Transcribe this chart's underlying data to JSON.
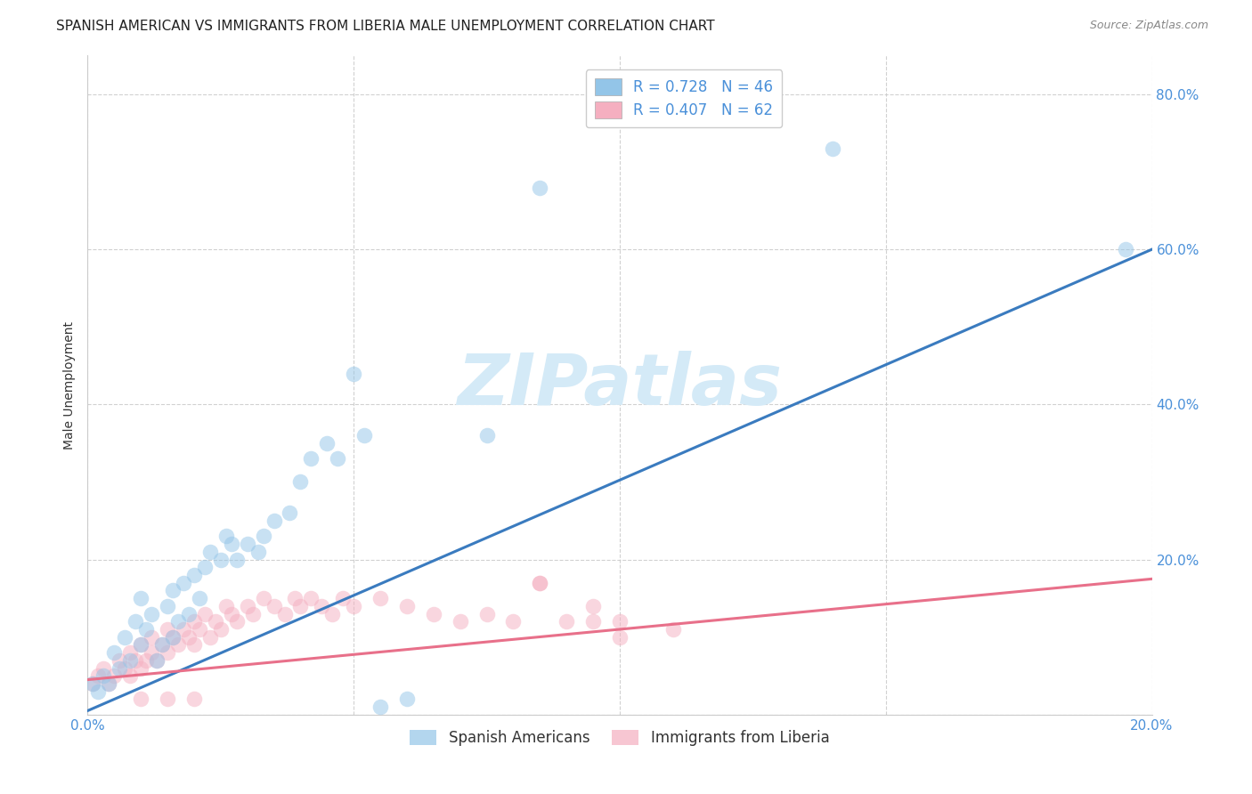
{
  "title": "SPANISH AMERICAN VS IMMIGRANTS FROM LIBERIA MALE UNEMPLOYMENT CORRELATION CHART",
  "source": "Source: ZipAtlas.com",
  "ylabel": "Male Unemployment",
  "x_min": 0.0,
  "x_max": 0.2,
  "y_min": 0.0,
  "y_max": 0.85,
  "x_ticks": [
    0.0,
    0.05,
    0.1,
    0.15,
    0.2
  ],
  "x_tick_labels": [
    "0.0%",
    "",
    "",
    "",
    "20.0%"
  ],
  "y_ticks": [
    0.0,
    0.2,
    0.4,
    0.6,
    0.8
  ],
  "y_tick_labels": [
    "",
    "20.0%",
    "40.0%",
    "60.0%",
    "80.0%"
  ],
  "blue_color": "#93c5e8",
  "blue_line_color": "#3a7bbf",
  "pink_color": "#f5afc0",
  "pink_line_color": "#e8708a",
  "blue_R": 0.728,
  "blue_N": 46,
  "pink_R": 0.407,
  "pink_N": 62,
  "blue_scatter_x": [
    0.001,
    0.002,
    0.003,
    0.004,
    0.005,
    0.006,
    0.007,
    0.008,
    0.009,
    0.01,
    0.01,
    0.011,
    0.012,
    0.013,
    0.014,
    0.015,
    0.016,
    0.016,
    0.017,
    0.018,
    0.019,
    0.02,
    0.021,
    0.022,
    0.023,
    0.025,
    0.026,
    0.027,
    0.028,
    0.03,
    0.032,
    0.033,
    0.035,
    0.038,
    0.04,
    0.042,
    0.045,
    0.047,
    0.05,
    0.052,
    0.055,
    0.06,
    0.075,
    0.085,
    0.14,
    0.195
  ],
  "blue_scatter_y": [
    0.04,
    0.03,
    0.05,
    0.04,
    0.08,
    0.06,
    0.1,
    0.07,
    0.12,
    0.09,
    0.15,
    0.11,
    0.13,
    0.07,
    0.09,
    0.14,
    0.1,
    0.16,
    0.12,
    0.17,
    0.13,
    0.18,
    0.15,
    0.19,
    0.21,
    0.2,
    0.23,
    0.22,
    0.2,
    0.22,
    0.21,
    0.23,
    0.25,
    0.26,
    0.3,
    0.33,
    0.35,
    0.33,
    0.44,
    0.36,
    0.01,
    0.02,
    0.36,
    0.68,
    0.73,
    0.6
  ],
  "pink_scatter_x": [
    0.001,
    0.002,
    0.003,
    0.004,
    0.005,
    0.006,
    0.007,
    0.008,
    0.008,
    0.009,
    0.01,
    0.01,
    0.011,
    0.012,
    0.012,
    0.013,
    0.014,
    0.015,
    0.015,
    0.016,
    0.017,
    0.018,
    0.019,
    0.02,
    0.02,
    0.021,
    0.022,
    0.023,
    0.024,
    0.025,
    0.026,
    0.027,
    0.028,
    0.03,
    0.031,
    0.033,
    0.035,
    0.037,
    0.039,
    0.04,
    0.042,
    0.044,
    0.046,
    0.048,
    0.05,
    0.055,
    0.06,
    0.065,
    0.07,
    0.075,
    0.08,
    0.085,
    0.09,
    0.095,
    0.1,
    0.11,
    0.01,
    0.015,
    0.02,
    0.085,
    0.095,
    0.1
  ],
  "pink_scatter_y": [
    0.04,
    0.05,
    0.06,
    0.04,
    0.05,
    0.07,
    0.06,
    0.08,
    0.05,
    0.07,
    0.06,
    0.09,
    0.07,
    0.08,
    0.1,
    0.07,
    0.09,
    0.11,
    0.08,
    0.1,
    0.09,
    0.11,
    0.1,
    0.12,
    0.09,
    0.11,
    0.13,
    0.1,
    0.12,
    0.11,
    0.14,
    0.13,
    0.12,
    0.14,
    0.13,
    0.15,
    0.14,
    0.13,
    0.15,
    0.14,
    0.15,
    0.14,
    0.13,
    0.15,
    0.14,
    0.15,
    0.14,
    0.13,
    0.12,
    0.13,
    0.12,
    0.17,
    0.12,
    0.14,
    0.12,
    0.11,
    0.02,
    0.02,
    0.02,
    0.17,
    0.12,
    0.1
  ],
  "blue_line_x0": 0.0,
  "blue_line_y0": 0.005,
  "blue_line_x1": 0.2,
  "blue_line_y1": 0.6,
  "pink_line_x0": 0.0,
  "pink_line_y0": 0.045,
  "pink_line_x1": 0.2,
  "pink_line_y1": 0.175,
  "watermark_text": "ZIPatlas",
  "watermark_color": "#d4eaf7",
  "background_color": "#ffffff",
  "grid_color": "#cccccc",
  "tick_label_color": "#4a90d9",
  "r_n_color": "#4a90d9",
  "r_label_color": "#222222",
  "legend_blue_label": "Spanish Americans",
  "legend_pink_label": "Immigrants from Liberia",
  "title_fontsize": 11,
  "axis_label_fontsize": 10,
  "tick_fontsize": 11,
  "legend_fontsize": 12,
  "source_fontsize": 9
}
